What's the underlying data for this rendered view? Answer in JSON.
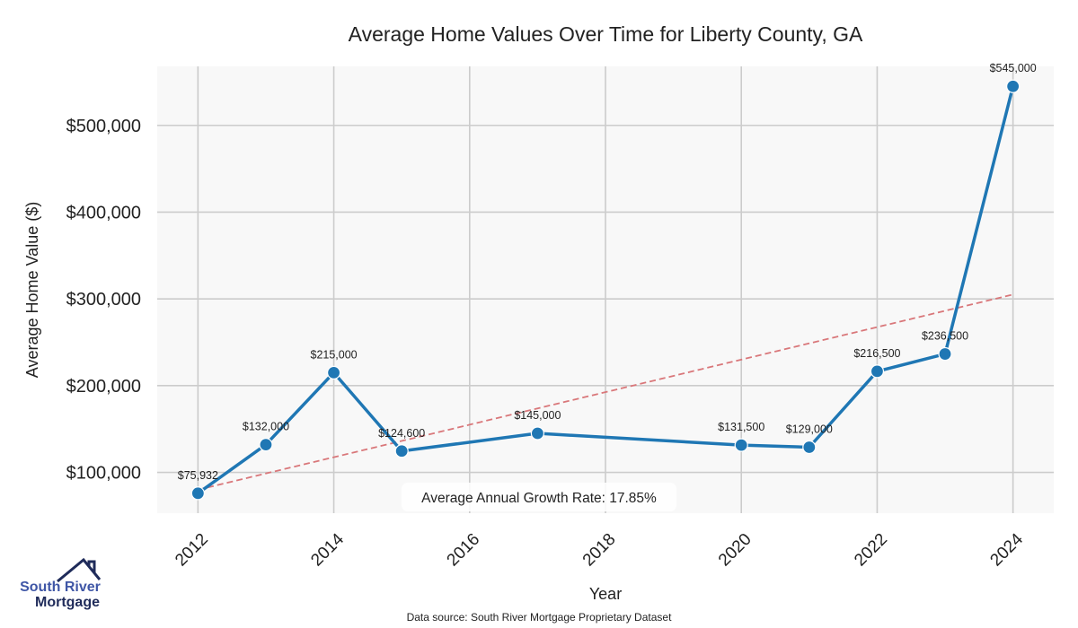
{
  "chart_data": {
    "type": "line",
    "title": "Average Home Values Over Time for Liberty County, GA",
    "xlabel": "Year",
    "ylabel": "Average Home Value ($)",
    "xlim": [
      2011.4,
      2024.6
    ],
    "ylim": [
      53000,
      568000
    ],
    "grid": true,
    "x_ticks": [
      2012,
      2014,
      2016,
      2018,
      2020,
      2022,
      2024
    ],
    "x_tick_labels": [
      "2012",
      "2014",
      "2016",
      "2018",
      "2020",
      "2022",
      "2024"
    ],
    "y_ticks": [
      100000,
      200000,
      300000,
      400000,
      500000
    ],
    "y_tick_labels": [
      "$100,000",
      "$200,000",
      "$300,000",
      "$400,000",
      "$500,000"
    ],
    "series": [
      {
        "name": "Average Home Value",
        "color": "#1f77b4",
        "x": [
          2012,
          2013,
          2014,
          2015,
          2017,
          2020,
          2021,
          2022,
          2023,
          2024
        ],
        "values": [
          75932,
          132000,
          215000,
          124600,
          145000,
          131500,
          129000,
          216500,
          236500,
          545000
        ],
        "labels": [
          "$75,932",
          "$132,000",
          "$215,000",
          "$124,600",
          "$145,000",
          "$131,500",
          "$129,000",
          "$216,500",
          "$236,500",
          "$545,000"
        ]
      }
    ],
    "trend_line": {
      "color": "#d9777a",
      "style": "dashed",
      "x": [
        2012,
        2024
      ],
      "values": [
        80000,
        305000
      ]
    },
    "annotation": "Average Annual Growth Rate: 17.85%",
    "source_note": "Data source: South River Mortgage Proprietary Dataset"
  },
  "logo": {
    "line1": "South River",
    "line2": "Mortgage",
    "color_primary": "#3f56a6",
    "color_dark": "#1f2b5a"
  },
  "colors": {
    "plot_bg": "#f8f8f8",
    "grid": "#cccccc"
  }
}
